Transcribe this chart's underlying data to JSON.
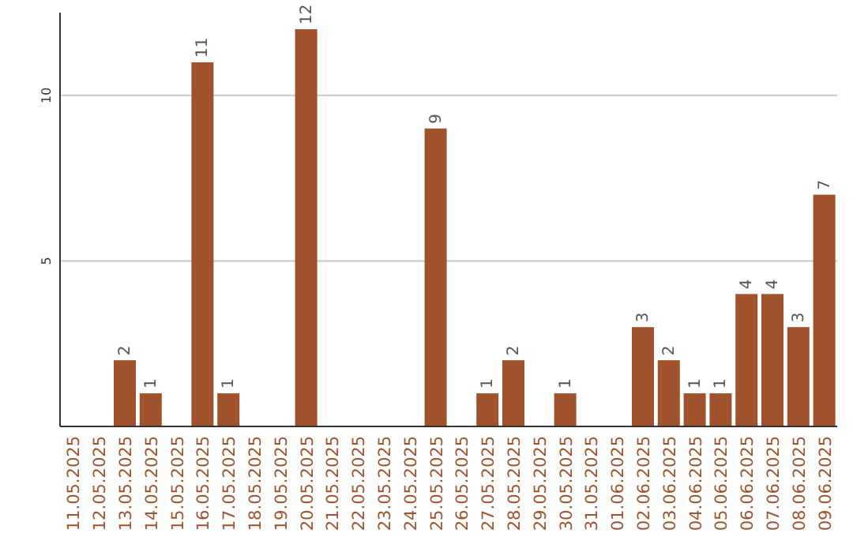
{
  "chart_data": {
    "type": "bar",
    "categories": [
      "11.05.2025",
      "12.05.2025",
      "13.05.2025",
      "14.05.2025",
      "15.05.2025",
      "16.05.2025",
      "17.05.2025",
      "18.05.2025",
      "19.05.2025",
      "20.05.2025",
      "21.05.2025",
      "22.05.2025",
      "23.05.2025",
      "24.05.2025",
      "25.05.2025",
      "26.05.2025",
      "27.05.2025",
      "28.05.2025",
      "29.05.2025",
      "30.05.2025",
      "31.05.2025",
      "01.06.2025",
      "02.06.2025",
      "03.06.2025",
      "04.06.2025",
      "05.06.2025",
      "06.06.2025",
      "07.06.2025",
      "08.06.2025",
      "09.06.2025"
    ],
    "values": [
      0,
      0,
      2,
      1,
      0,
      11,
      1,
      0,
      0,
      12,
      0,
      0,
      0,
      0,
      9,
      0,
      1,
      2,
      0,
      1,
      0,
      0,
      3,
      2,
      1,
      1,
      4,
      4,
      3,
      7
    ],
    "value_labels": [
      null,
      null,
      "2",
      "1",
      null,
      "11",
      "1",
      null,
      null,
      "12",
      null,
      null,
      null,
      null,
      "9",
      null,
      "1",
      "2",
      null,
      "1",
      null,
      null,
      "3",
      "2",
      "1",
      "1",
      "4",
      "4",
      "3",
      "7"
    ],
    "color": "#a0522d",
    "ylim": [
      0,
      12.5
    ],
    "yticks": [
      5,
      10
    ],
    "grid": "y"
  }
}
